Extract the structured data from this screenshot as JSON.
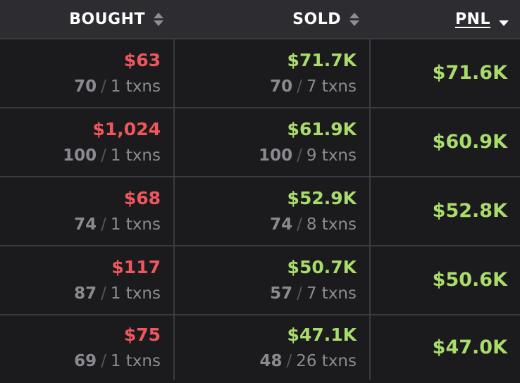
{
  "header": {
    "bought_label": "BOUGHT",
    "sold_label": "SOLD",
    "pnl_label": "PNL"
  },
  "rows": [
    {
      "bought": "$63",
      "bought_count": "70",
      "bought_txns": "1 txns",
      "sold": "$71.7K",
      "sold_count": "70",
      "sold_txns": "7 txns",
      "pnl": "$71.6K"
    },
    {
      "bought": "$1,024",
      "bought_count": "100",
      "bought_txns": "1 txns",
      "sold": "$61.9K",
      "sold_count": "100",
      "sold_txns": "9 txns",
      "pnl": "$60.9K"
    },
    {
      "bought": "$68",
      "bought_count": "74",
      "bought_txns": "1 txns",
      "sold": "$52.9K",
      "sold_count": "74",
      "sold_txns": "8 txns",
      "pnl": "$52.8K"
    },
    {
      "bought": "$117",
      "bought_count": "87",
      "bought_txns": "1 txns",
      "sold": "$50.7K",
      "sold_count": "57",
      "sold_txns": "7 txns",
      "pnl": "$50.6K"
    },
    {
      "bought": "$75",
      "bought_count": "69",
      "bought_txns": "1 txns",
      "sold": "$47.1K",
      "sold_count": "48",
      "sold_txns": "26 txns",
      "pnl": "$47.0K"
    }
  ],
  "separator": "/",
  "colors": {
    "background": "#1b1b1e",
    "header_bg": "#2c2c31",
    "negative": "#f0575d",
    "positive": "#a9dc6a",
    "muted": "#8a8a90"
  }
}
